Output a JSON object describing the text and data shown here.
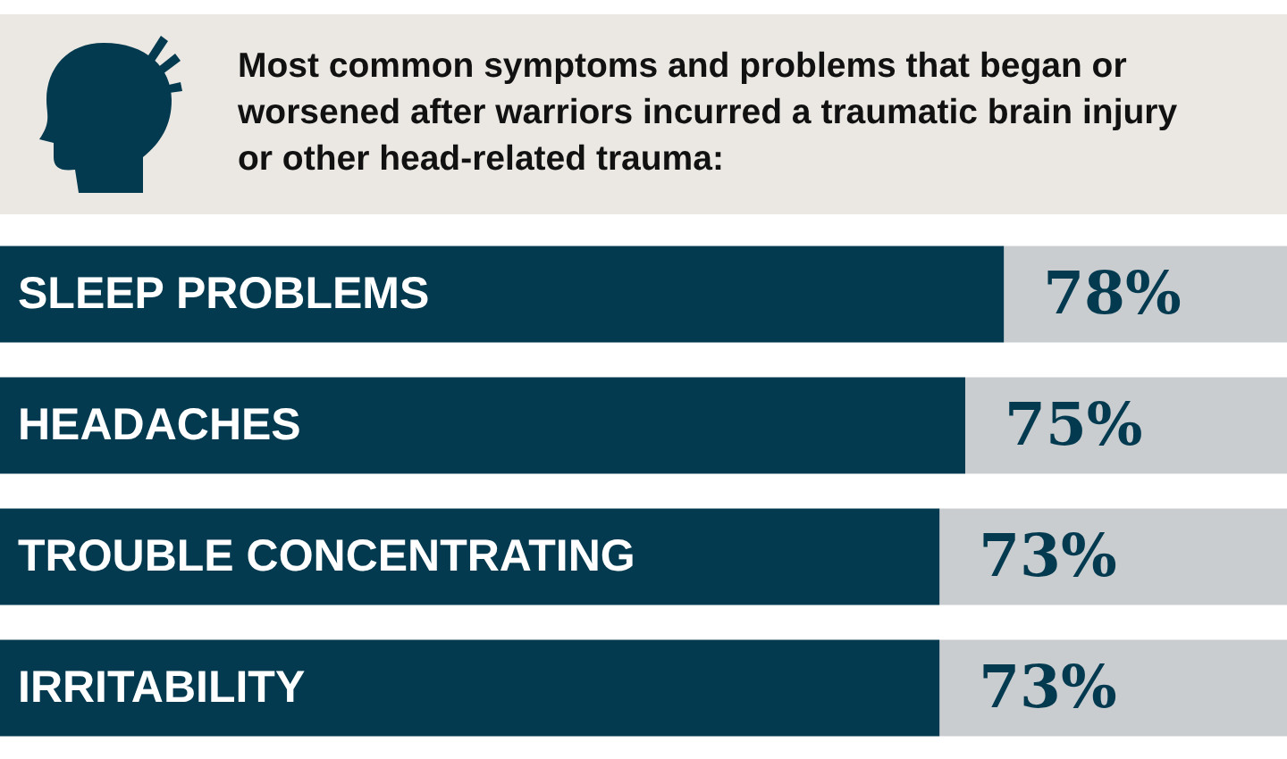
{
  "chart_data": {
    "type": "bar",
    "orientation": "horizontal",
    "stacked": true,
    "title": "Most common symptoms and problems that began or worsened after warriors incurred a traumatic brain injury or other head-related trauma:",
    "categories": [
      "SLEEP PROBLEMS",
      "HEADACHES",
      "TROUBLE CONCENTRATING",
      "IRRITABILITY"
    ],
    "series": [
      {
        "color": "#033a4f",
        "values": [
          78,
          75,
          73,
          73
        ],
        "value_labels": [
          "78%",
          "75%",
          "73%",
          "73%"
        ]
      },
      {
        "color": "#c9cdd0",
        "values": [
          22,
          25,
          27,
          27
        ]
      }
    ],
    "xlim": [
      0,
      100
    ],
    "tick_labels": false,
    "legend": false
  }
}
